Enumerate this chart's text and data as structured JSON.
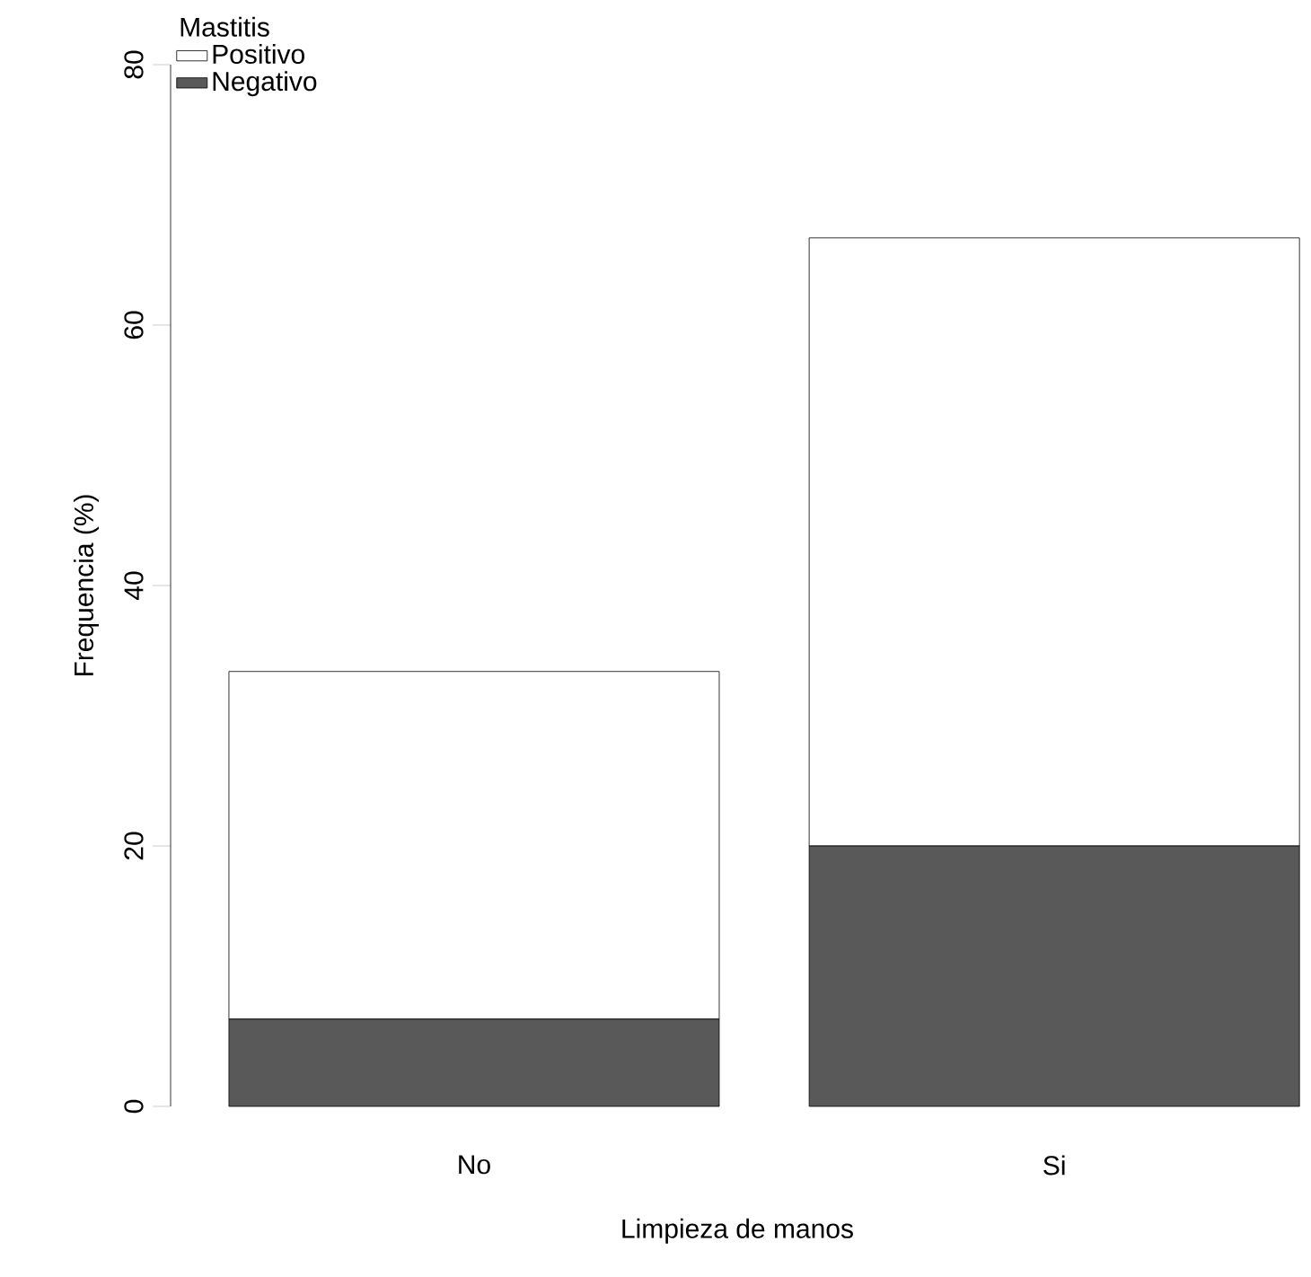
{
  "chart_data": {
    "type": "bar",
    "stacked": true,
    "xlabel": "Limpieza de manos",
    "ylabel": "Frequencia (%)",
    "legend_title": "Mastitis",
    "legend": "top left",
    "categories": [
      "No",
      "Si"
    ],
    "series": [
      {
        "name": "Negativo",
        "color": "#595959",
        "values": [
          6.7,
          20
        ]
      },
      {
        "name": "Positivo",
        "color": "#ffffff",
        "values": [
          26.7,
          46.7
        ]
      }
    ],
    "ylim": [
      0,
      80
    ],
    "yticks": [
      0,
      20,
      40,
      60,
      80
    ],
    "grid": false
  }
}
